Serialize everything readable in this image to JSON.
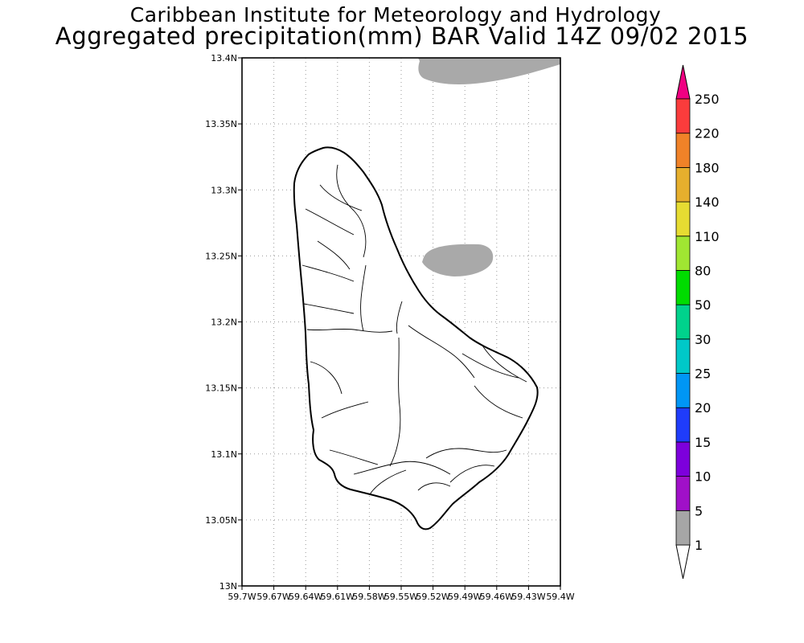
{
  "header": {
    "title": "Caribbean Institute for Meteorology and Hydrology",
    "subtitle": "Aggregated precipitation(mm) BAR Valid 14Z 09/02 2015"
  },
  "map": {
    "lat_min": 13.0,
    "lat_max": 13.4,
    "lon_min": -59.7,
    "lon_max": -59.4,
    "y_ticks": [
      "13N",
      "13.05N",
      "13.1N",
      "13.15N",
      "13.2N",
      "13.25N",
      "13.3N",
      "13.35N",
      "13.4N"
    ],
    "x_ticks": [
      "59.7W",
      "59.67W",
      "59.64W",
      "59.61W",
      "59.58W",
      "59.55W",
      "59.52W",
      "59.49W",
      "59.46W",
      "59.43W",
      "59.4W"
    ],
    "grid": true,
    "precip_areas": [
      {
        "class": "1-5",
        "color": "#a9a9a9",
        "location": "north edge, near 13.39N 59.47W"
      },
      {
        "class": "1-5",
        "color": "#a9a9a9",
        "location": "offshore east coast, near 13.25N 59.49W"
      }
    ]
  },
  "colorbar": {
    "orientation": "vertical",
    "labels": [
      "1",
      "5",
      "10",
      "15",
      "20",
      "25",
      "30",
      "50",
      "80",
      "110",
      "140",
      "180",
      "220",
      "250"
    ],
    "colors": [
      "#ffffff",
      "#a6a6a6",
      "#a010c8",
      "#7d00dc",
      "#1f3cfa",
      "#0096f5",
      "#00c8c8",
      "#00d28c",
      "#00dc00",
      "#a0e632",
      "#e6dc32",
      "#e6af2d",
      "#f08228",
      "#fa3c3c",
      "#f00082"
    ]
  }
}
